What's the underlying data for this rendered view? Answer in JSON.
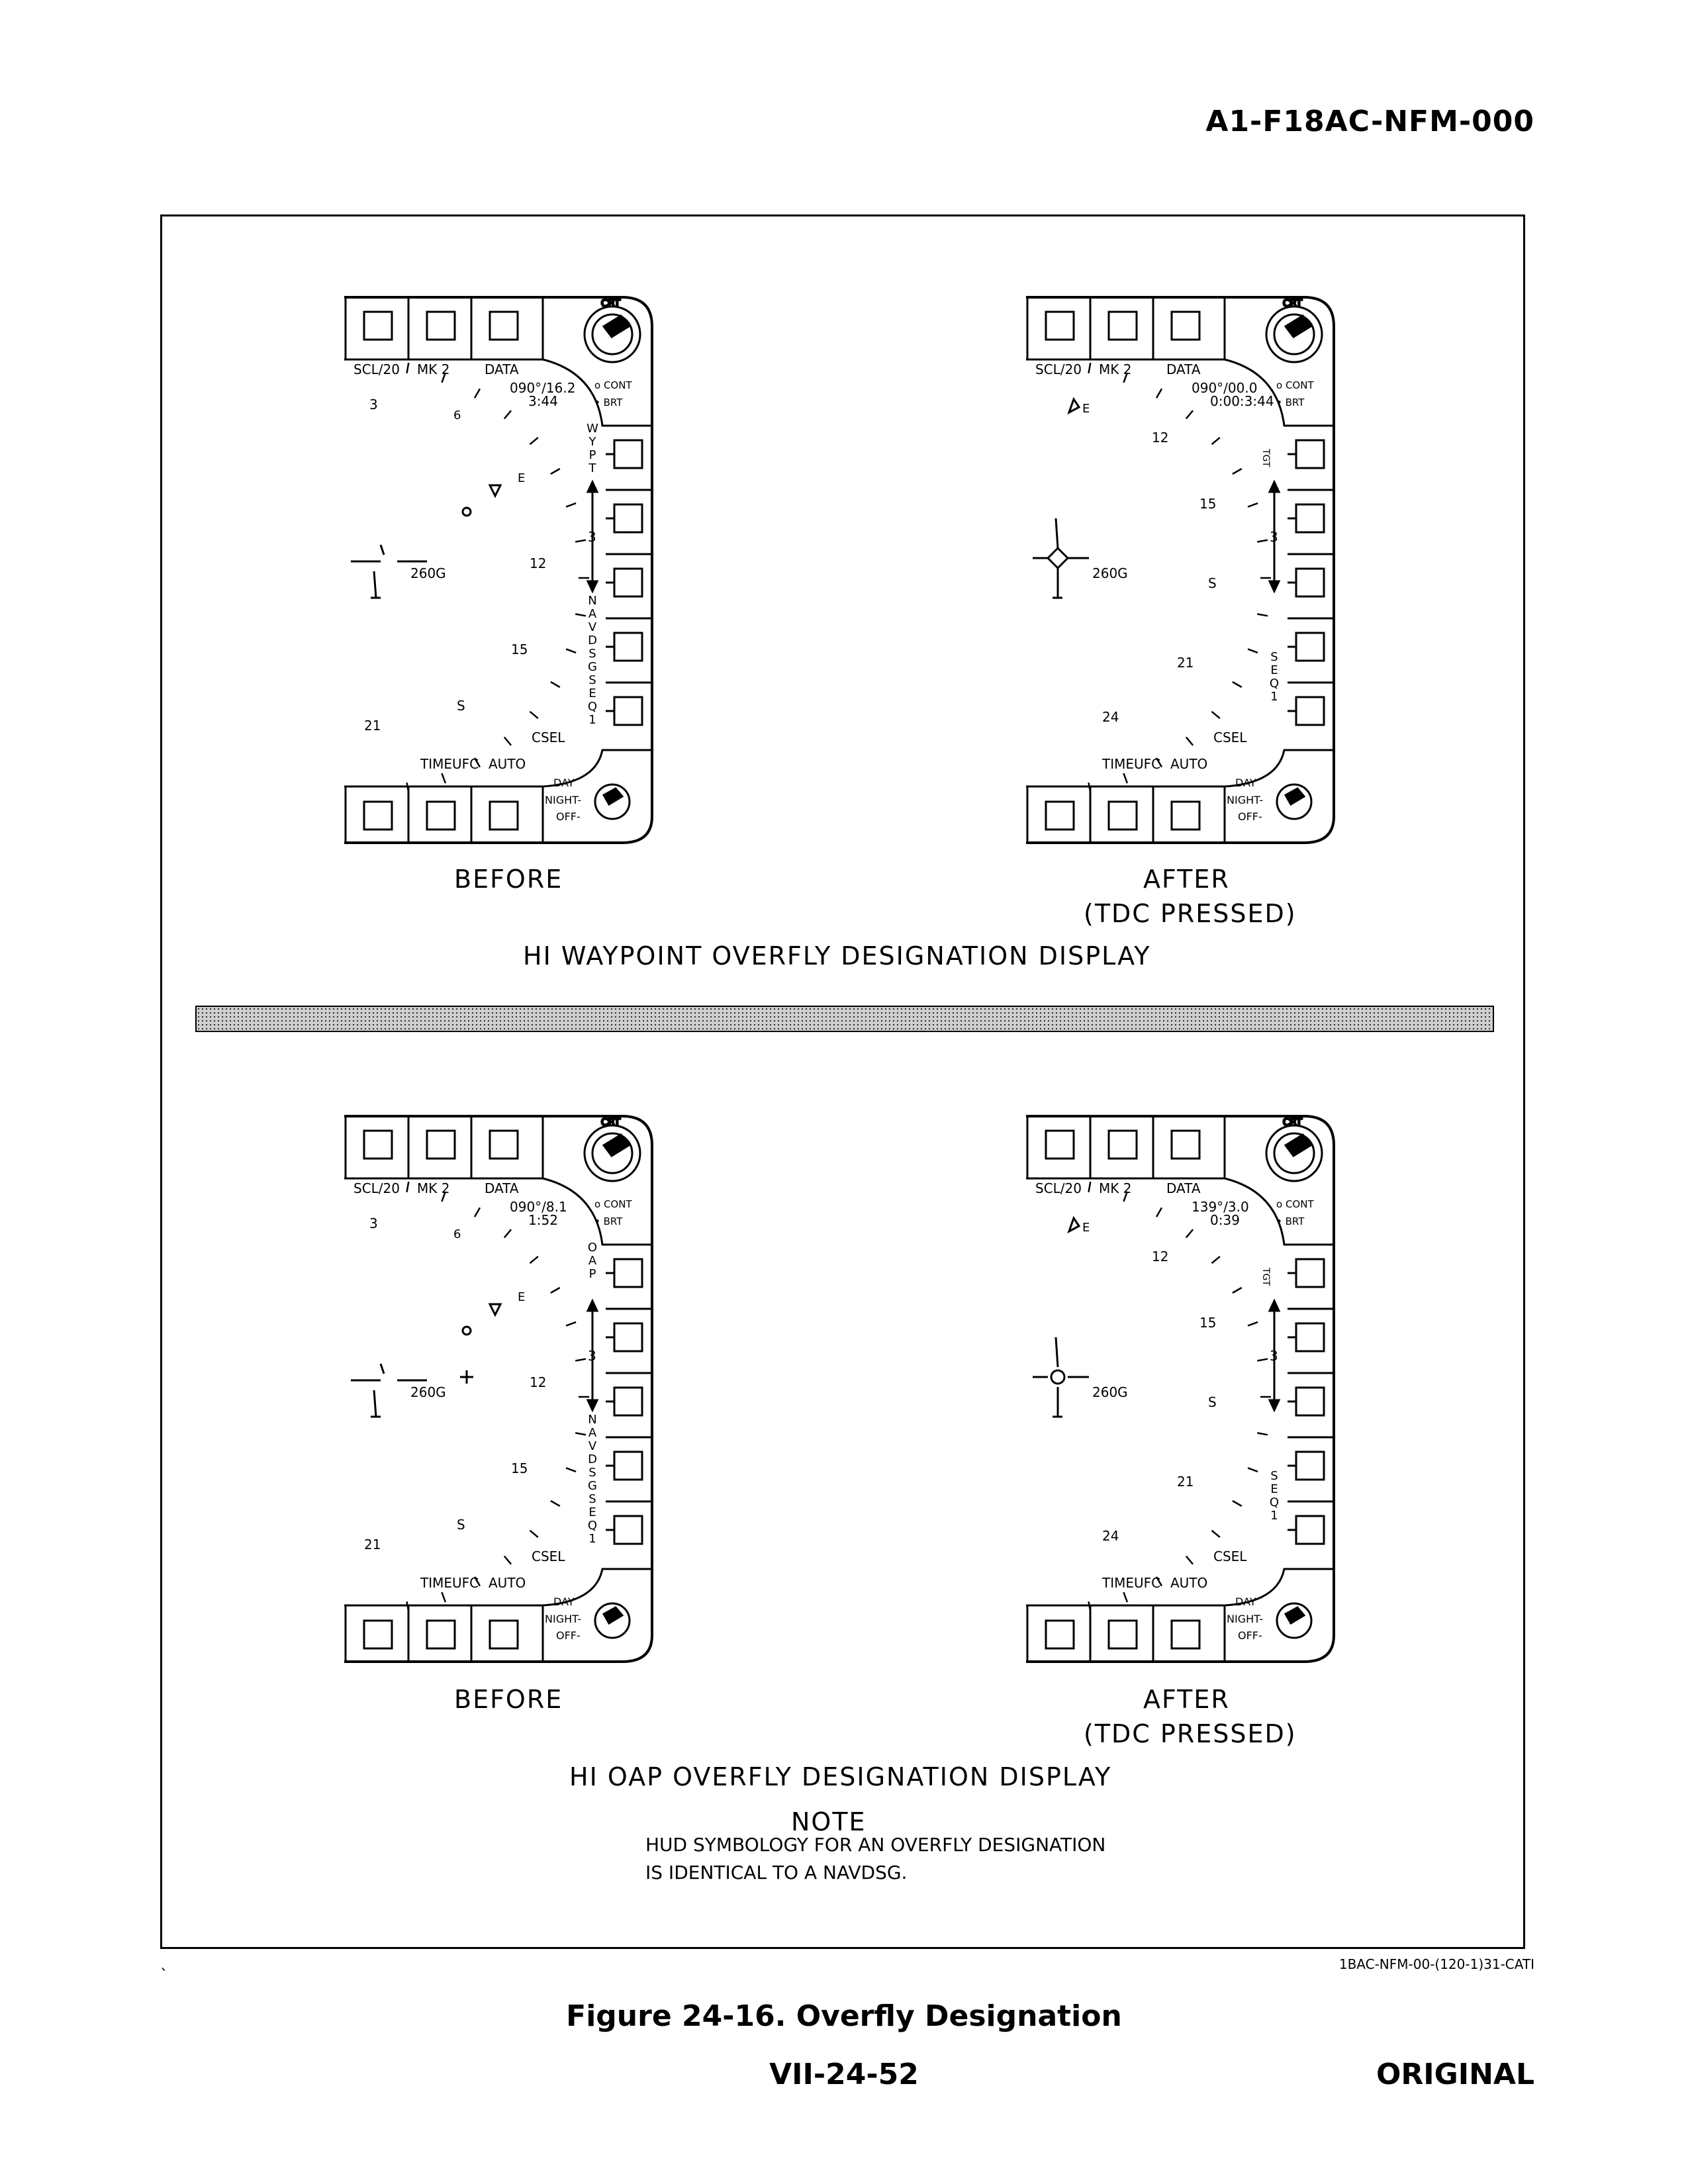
{
  "header": {
    "doc_number": "A1-F18AC-NFM-000"
  },
  "section_top": {
    "title": "HI WAYPOINT OVERFLY DESIGNATION DISPLAY",
    "before_caption": "BEFORE",
    "after_caption_1": "AFTER",
    "after_caption_2": "(TDC PRESSED)"
  },
  "section_bottom": {
    "title": "HI OAP OVERFLY DESIGNATION DISPLAY",
    "before_caption": "BEFORE",
    "after_caption_1": "AFTER",
    "after_caption_2": "(TDC PRESSED)"
  },
  "note": {
    "heading": "NOTE",
    "line1": "HUD SYMBOLOGY FOR AN OVERFLY DESIGNATION",
    "line2": "IS IDENTICAL TO A NAVDSG."
  },
  "common_labels": {
    "crt": "CRT",
    "cont": "CONT",
    "brt": "BRT",
    "scl": "SCL/20",
    "mk": "MK 2",
    "data": "DATA",
    "time": "TIME",
    "ufc": "UFC",
    "auto": "AUTO",
    "day": "DAY",
    "night": "NIGHT",
    "off": "OFF",
    "csel": "CSEL",
    "ground_speed": "260G",
    "range_scale": "3"
  },
  "displays": {
    "wpt_before": {
      "bearing": "090°/16.2",
      "time": "3:44",
      "mode": "WYPT",
      "side_labels": "NAVDSG",
      "seq": "SEQ1",
      "heading_marks": [
        "E",
        "12",
        "15",
        "S",
        "21"
      ],
      "small_mark": "6",
      "top_mark": "3"
    },
    "wpt_after": {
      "bearing": "090°/00.0",
      "time": "0:00:3:44",
      "tgt": "TGT",
      "seq": "SEQ1",
      "heading_marks": [
        "E",
        "12",
        "15",
        "S",
        "21",
        "24"
      ]
    },
    "oap_before": {
      "bearing": "090°/8.1",
      "time": "1:52",
      "mode": "OAP",
      "side_labels": "NAVDSGSEQ1",
      "heading_marks": [
        "E",
        "12",
        "15",
        "S",
        "21"
      ],
      "small_mark": "6",
      "top_mark": "3"
    },
    "oap_after": {
      "bearing": "139°/3.0",
      "time": "0:39",
      "tgt": "TGT",
      "seq": "SEQ1",
      "heading_marks": [
        "E",
        "12",
        "15",
        "S",
        "21",
        "24"
      ]
    }
  },
  "footer": {
    "art_id": "1BAC-NFM-00-(120-1)31-CATI",
    "figure_caption": "Figure 24-16. Overfly Designation",
    "page_number": "VII-24-52",
    "status": "ORIGINAL"
  }
}
